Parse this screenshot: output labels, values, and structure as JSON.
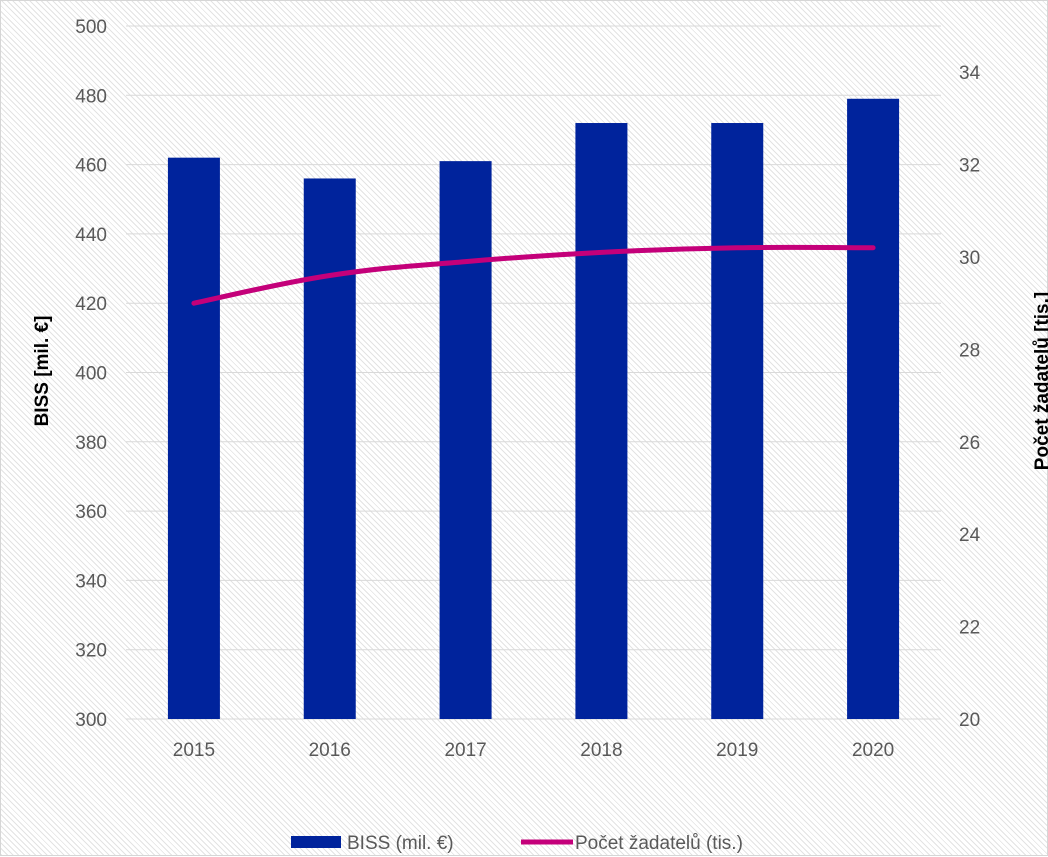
{
  "chart_data": {
    "type": "bar",
    "categories": [
      "2015",
      "2016",
      "2017",
      "2018",
      "2019",
      "2020"
    ],
    "series": [
      {
        "name": "BISS (mil. €)",
        "type": "bar",
        "axis": "left",
        "color": "#00239C",
        "values": [
          462,
          456,
          461,
          472,
          472,
          479
        ]
      },
      {
        "name": "Počet žadatelů (tis.)",
        "type": "line",
        "axis": "right",
        "color": "#C4007A",
        "values": [
          29.0,
          29.6,
          29.9,
          30.1,
          30.2,
          30.2
        ]
      }
    ],
    "ylabel": "BISS [mil. €]",
    "ylabel_right": "Počet žadatelů [tis.]",
    "ylim": [
      300,
      500
    ],
    "yticks": [
      "300",
      "320",
      "340",
      "360",
      "380",
      "400",
      "420",
      "440",
      "460",
      "480",
      "500"
    ],
    "ylim_right": [
      20,
      35
    ],
    "yticks_right": [
      "20",
      "22",
      "24",
      "26",
      "28",
      "30",
      "32",
      "34"
    ],
    "grid": true,
    "legend_position": "bottom"
  }
}
